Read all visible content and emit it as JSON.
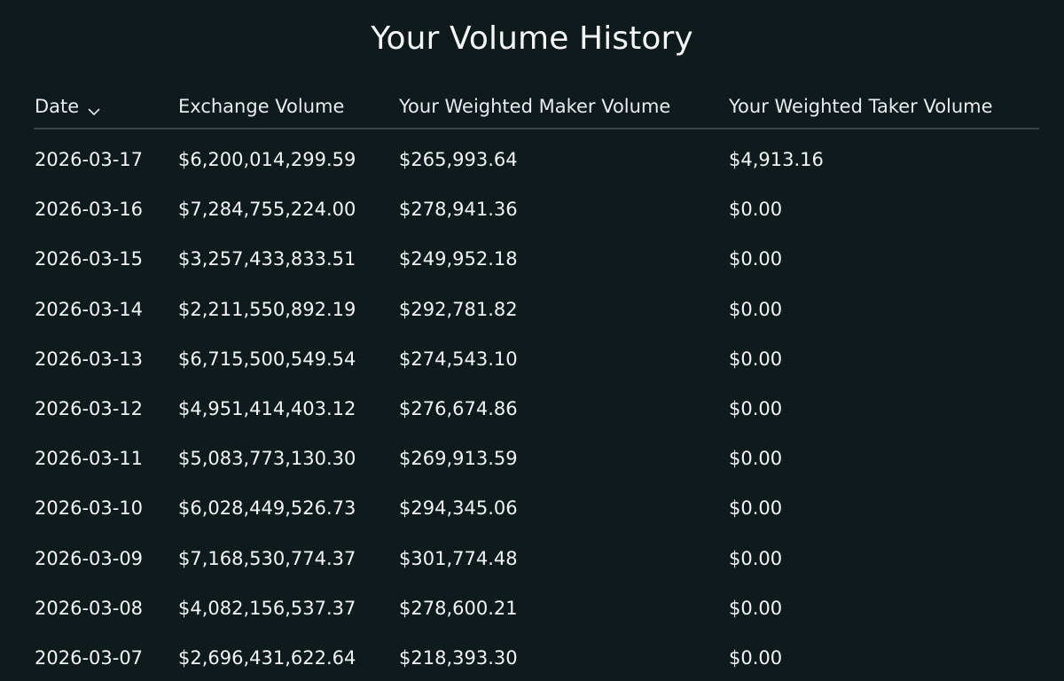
{
  "title": "Your Volume History",
  "table": {
    "columns": [
      "Date",
      "Exchange Volume",
      "Your Weighted Maker Volume",
      "Your Weighted Taker Volume"
    ],
    "sort_icon": "chevron-down-icon",
    "rows": [
      [
        "2026-03-17",
        "$6,200,014,299.59",
        "$265,993.64",
        "$4,913.16"
      ],
      [
        "2026-03-16",
        "$7,284,755,224.00",
        "$278,941.36",
        "$0.00"
      ],
      [
        "2026-03-15",
        "$3,257,433,833.51",
        "$249,952.18",
        "$0.00"
      ],
      [
        "2026-03-14",
        "$2,211,550,892.19",
        "$292,781.82",
        "$0.00"
      ],
      [
        "2026-03-13",
        "$6,715,500,549.54",
        "$274,543.10",
        "$0.00"
      ],
      [
        "2026-03-12",
        "$4,951,414,403.12",
        "$276,674.86",
        "$0.00"
      ],
      [
        "2026-03-11",
        "$5,083,773,130.30",
        "$269,913.59",
        "$0.00"
      ],
      [
        "2026-03-10",
        "$6,028,449,526.73",
        "$294,345.06",
        "$0.00"
      ],
      [
        "2026-03-09",
        "$7,168,530,774.37",
        "$301,774.48",
        "$0.00"
      ],
      [
        "2026-03-08",
        "$4,082,156,537.37",
        "$278,600.21",
        "$0.00"
      ],
      [
        "2026-03-07",
        "$2,696,431,622.64",
        "$218,393.30",
        "$0.00"
      ]
    ]
  },
  "colors": {
    "background": "#0f1a1d",
    "text": "#f2f4f4",
    "divider": "#3a4346"
  }
}
